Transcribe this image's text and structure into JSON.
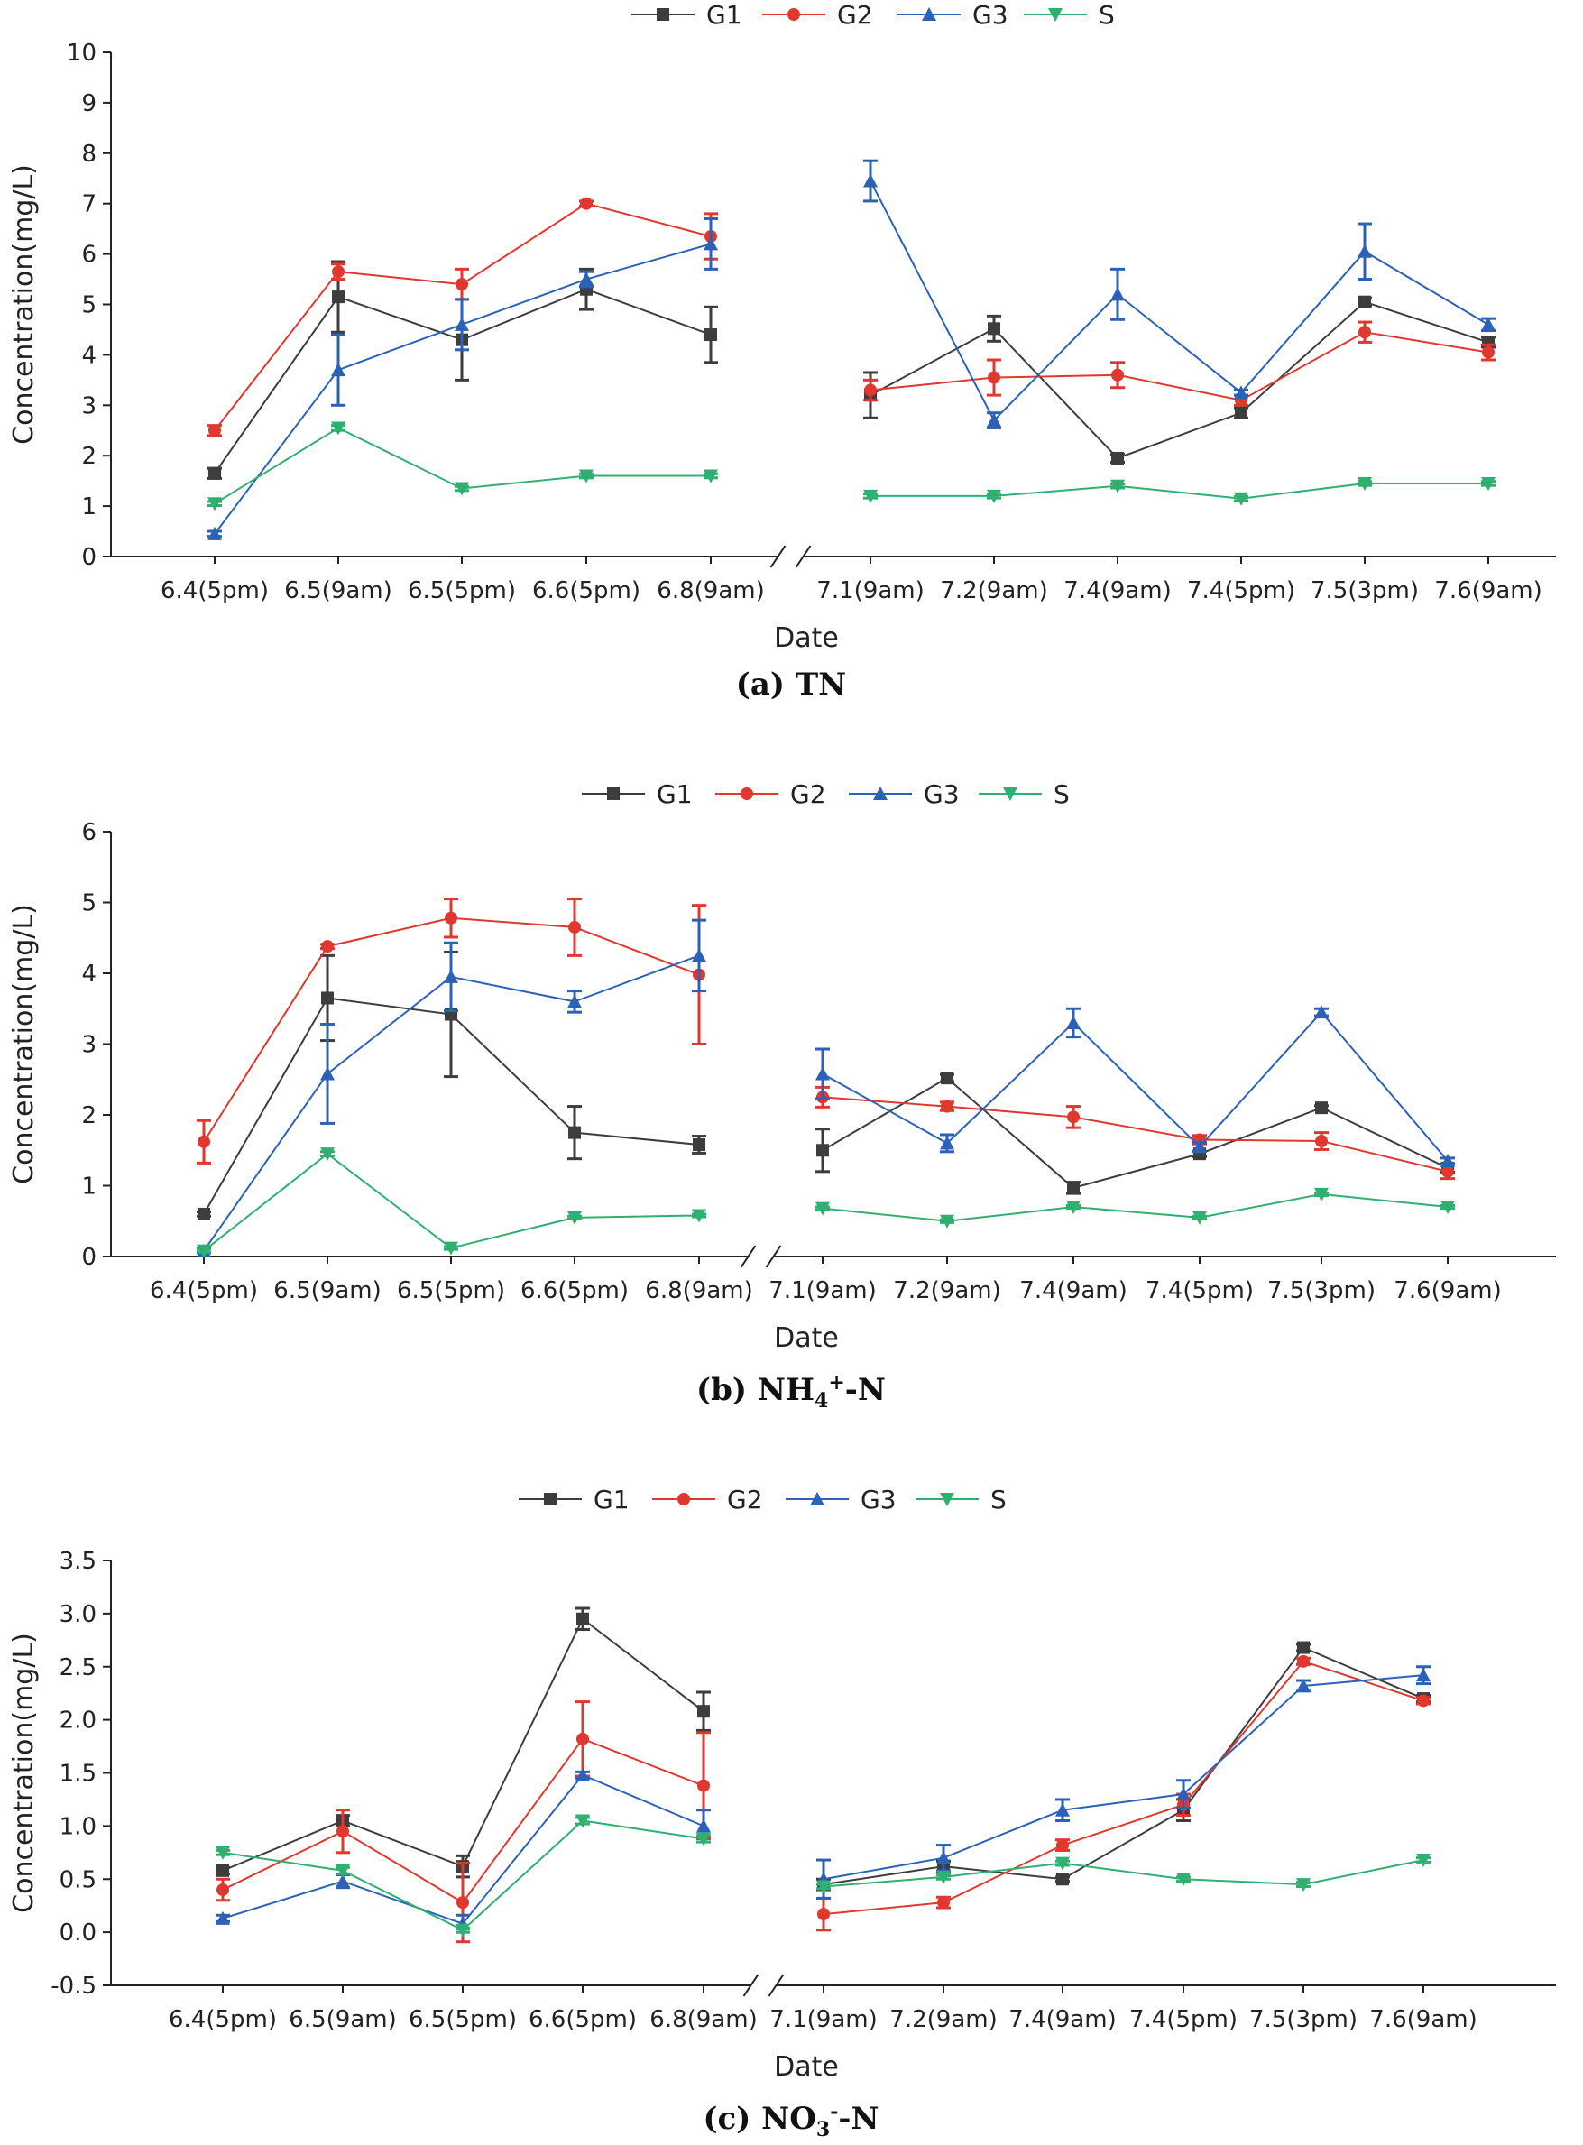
{
  "chart_data": [
    {
      "type": "line",
      "panel": "a",
      "caption_label": "(a)",
      "caption_title": "TN",
      "xlabel": "Date",
      "ylabel": "Concentration(mg/L)",
      "ylim": [
        0,
        10
      ],
      "yticks": [
        "0",
        "1",
        "2",
        "3",
        "4",
        "5",
        "6",
        "7",
        "8",
        "9",
        "10"
      ],
      "categories": [
        "6.4(5pm)",
        "6.5(9am)",
        "6.5(5pm)",
        "6.6(5pm)",
        "6.8(9am)",
        "7.1(9am)",
        "7.2(9am)",
        "7.4(9am)",
        "7.4(5pm)",
        "7.5(3pm)",
        "7.6(9am)"
      ],
      "axis_break_after": 4,
      "series": [
        {
          "name": "G1",
          "color": "#3d3d3d",
          "marker": "square",
          "values": [
            1.65,
            5.15,
            4.3,
            5.3,
            4.4,
            3.2,
            4.52,
            1.95,
            2.85,
            5.05,
            4.25
          ],
          "errors": [
            0.1,
            0.7,
            0.8,
            0.4,
            0.55,
            0.45,
            0.25,
            0.08,
            0.1,
            0.08,
            0.1
          ]
        },
        {
          "name": "G2",
          "color": "#e0382f",
          "marker": "circle",
          "values": [
            2.5,
            5.65,
            5.4,
            7.0,
            6.35,
            3.3,
            3.55,
            3.6,
            3.1,
            4.45,
            4.05
          ],
          "errors": [
            0.1,
            0.15,
            0.3,
            0.05,
            0.45,
            0.2,
            0.35,
            0.25,
            0.1,
            0.2,
            0.15
          ]
        },
        {
          "name": "G3",
          "color": "#2b62b8",
          "marker": "triangle-up",
          "values": [
            0.45,
            3.7,
            4.6,
            5.5,
            6.2,
            7.45,
            2.7,
            5.2,
            3.25,
            6.05,
            4.6
          ],
          "errors": [
            0.05,
            0.7,
            0.5,
            0.15,
            0.5,
            0.4,
            0.15,
            0.5,
            0.05,
            0.55,
            0.12
          ]
        },
        {
          "name": "S",
          "color": "#2fb070",
          "marker": "triangle-down",
          "values": [
            1.05,
            2.55,
            1.35,
            1.6,
            1.6,
            1.2,
            1.2,
            1.4,
            1.15,
            1.45,
            1.45
          ],
          "errors": [
            0.04,
            0.05,
            0.04,
            0.04,
            0.04,
            0.04,
            0.04,
            0.04,
            0.04,
            0.04,
            0.04
          ]
        }
      ]
    },
    {
      "type": "line",
      "panel": "b",
      "caption_label": "(b)",
      "caption_title": "NH4+-N",
      "caption_main": "NH",
      "caption_sub": "4",
      "caption_sup": "+",
      "caption_tail": "-N",
      "xlabel": "Date",
      "ylabel": "Concentration(mg/L)",
      "ylim": [
        0,
        6
      ],
      "yticks": [
        "0",
        "1",
        "2",
        "3",
        "4",
        "5",
        "6"
      ],
      "categories": [
        "6.4(5pm)",
        "6.5(9am)",
        "6.5(5pm)",
        "6.6(5pm)",
        "6.8(9am)",
        "7.1(9am)",
        "7.2(9am)",
        "7.4(9am)",
        "7.4(5pm)",
        "7.5(3pm)",
        "7.6(9am)"
      ],
      "axis_break_after": 4,
      "series": [
        {
          "name": "G1",
          "color": "#3d3d3d",
          "marker": "square",
          "values": [
            0.6,
            3.65,
            3.42,
            1.75,
            1.58,
            1.5,
            2.52,
            0.97,
            1.45,
            2.1,
            1.25
          ],
          "errors": [
            0.03,
            0.6,
            0.88,
            0.37,
            0.12,
            0.3,
            0.05,
            0.08,
            0.04,
            0.03,
            0.06
          ]
        },
        {
          "name": "G2",
          "color": "#e0382f",
          "marker": "circle",
          "values": [
            1.62,
            4.38,
            4.78,
            4.65,
            3.98,
            2.25,
            2.12,
            1.97,
            1.65,
            1.63,
            1.2
          ],
          "errors": [
            0.3,
            0.03,
            0.27,
            0.4,
            0.98,
            0.14,
            0.06,
            0.15,
            0.06,
            0.12,
            0.1
          ]
        },
        {
          "name": "G3",
          "color": "#2b62b8",
          "marker": "triangle-up",
          "values": [
            0.08,
            2.58,
            3.95,
            3.6,
            4.25,
            2.58,
            1.6,
            3.3,
            1.55,
            3.45,
            1.35
          ],
          "errors": [
            0.03,
            0.7,
            0.48,
            0.15,
            0.5,
            0.35,
            0.12,
            0.2,
            0.06,
            0.05,
            0.04
          ]
        },
        {
          "name": "S",
          "color": "#2fb070",
          "marker": "triangle-down",
          "values": [
            0.08,
            1.45,
            0.12,
            0.55,
            0.58,
            0.68,
            0.5,
            0.7,
            0.55,
            0.88,
            0.7
          ],
          "errors": [
            0.02,
            0.03,
            0.02,
            0.02,
            0.02,
            0.02,
            0.02,
            0.02,
            0.02,
            0.02,
            0.02
          ]
        }
      ]
    },
    {
      "type": "line",
      "panel": "c",
      "caption_label": "(c)",
      "caption_title": "NO3--N",
      "caption_main": "NO",
      "caption_sub": "3",
      "caption_sup": "-",
      "caption_tail": "-N",
      "xlabel": "Date",
      "ylabel": "Concentration(mg/L)",
      "ylim": [
        -0.5,
        3.5
      ],
      "yticks": [
        "-0.5",
        "0.0",
        "0.5",
        "1.0",
        "1.5",
        "2.0",
        "2.5",
        "3.0",
        "3.5"
      ],
      "categories": [
        "6.4(5pm)",
        "6.5(9am)",
        "6.5(5pm)",
        "6.6(5pm)",
        "6.8(9am)",
        "7.1(9am)",
        "7.2(9am)",
        "7.4(9am)",
        "7.4(5pm)",
        "7.5(3pm)",
        "7.6(9am)"
      ],
      "axis_break_after": 4,
      "series": [
        {
          "name": "G1",
          "color": "#3d3d3d",
          "marker": "square",
          "values": [
            0.58,
            1.05,
            0.62,
            2.95,
            2.08,
            0.45,
            0.62,
            0.5,
            1.15,
            2.68,
            2.2
          ],
          "errors": [
            0.03,
            0.05,
            0.1,
            0.1,
            0.18,
            0.05,
            0.05,
            0.02,
            0.1,
            0.03,
            0.03
          ]
        },
        {
          "name": "G2",
          "color": "#e0382f",
          "marker": "circle",
          "values": [
            0.4,
            0.95,
            0.28,
            1.82,
            1.38,
            0.17,
            0.28,
            0.82,
            1.2,
            2.55,
            2.18
          ],
          "errors": [
            0.1,
            0.2,
            0.37,
            0.35,
            0.5,
            0.15,
            0.05,
            0.05,
            0.1,
            0.03,
            0.03
          ]
        },
        {
          "name": "G3",
          "color": "#2b62b8",
          "marker": "triangle-up",
          "values": [
            0.13,
            0.48,
            0.08,
            1.48,
            1.0,
            0.5,
            0.7,
            1.15,
            1.3,
            2.32,
            2.42
          ],
          "errors": [
            0.03,
            0.06,
            0.08,
            0.03,
            0.15,
            0.18,
            0.12,
            0.1,
            0.13,
            0.05,
            0.08
          ]
        },
        {
          "name": "S",
          "color": "#2fb070",
          "marker": "triangle-down",
          "values": [
            0.75,
            0.58,
            0.02,
            1.05,
            0.88,
            0.43,
            0.52,
            0.65,
            0.5,
            0.45,
            0.68
          ],
          "errors": [
            0.02,
            0.03,
            0.02,
            0.03,
            0.03,
            0.02,
            0.02,
            0.02,
            0.02,
            0.02,
            0.02
          ]
        }
      ]
    }
  ]
}
